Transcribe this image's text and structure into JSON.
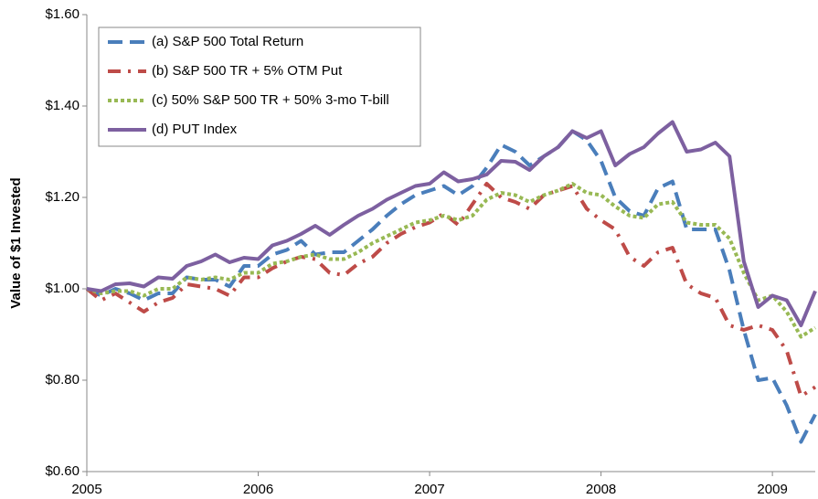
{
  "chart_data": {
    "type": "line",
    "y_label": "Value of $1 Invested",
    "x": [
      2005,
      2005.083,
      2005.167,
      2005.25,
      2005.333,
      2005.417,
      2005.5,
      2005.583,
      2005.667,
      2005.75,
      2005.833,
      2005.917,
      2006,
      2006.083,
      2006.167,
      2006.25,
      2006.333,
      2006.417,
      2006.5,
      2006.583,
      2006.667,
      2006.75,
      2006.833,
      2006.917,
      2007,
      2007.083,
      2007.167,
      2007.25,
      2007.333,
      2007.417,
      2007.5,
      2007.583,
      2007.667,
      2007.75,
      2007.833,
      2007.917,
      2008,
      2008.083,
      2008.167,
      2008.25,
      2008.333,
      2008.417,
      2008.5,
      2008.583,
      2008.667,
      2008.75,
      2008.833,
      2008.917,
      2009,
      2009.083,
      2009.167,
      2009.25
    ],
    "xlim": [
      2005,
      2009.25
    ],
    "xticks": [
      2005,
      2006,
      2007,
      2008,
      2009
    ],
    "ylim": [
      0.6,
      1.6
    ],
    "yticks": [
      {
        "value": 0.6,
        "label": "$0.60"
      },
      {
        "value": 0.8,
        "label": "$0.80"
      },
      {
        "value": 1.0,
        "label": "$1.00"
      },
      {
        "value": 1.2,
        "label": "$1.20"
      },
      {
        "value": 1.4,
        "label": "$1.40"
      },
      {
        "value": 1.6,
        "label": "$1.60"
      }
    ],
    "grid": false,
    "legend": "upper left",
    "series": [
      {
        "name": "(a) S&P 500 Total Return",
        "color": "#4a7ebb",
        "dash": "dashed",
        "values": [
          1.0,
          0.985,
          1.0,
          0.99,
          0.975,
          0.99,
          0.99,
          1.025,
          1.02,
          1.02,
          1.005,
          1.05,
          1.05,
          1.075,
          1.085,
          1.105,
          1.075,
          1.08,
          1.08,
          1.105,
          1.13,
          1.16,
          1.185,
          1.205,
          1.215,
          1.225,
          1.205,
          1.225,
          1.265,
          1.315,
          1.3,
          1.27,
          1.29,
          1.31,
          1.345,
          1.325,
          1.28,
          1.2,
          1.17,
          1.16,
          1.22,
          1.235,
          1.13,
          1.13,
          1.13,
          1.04,
          0.91,
          0.8,
          0.805,
          0.745,
          0.665,
          0.725
        ]
      },
      {
        "name": "(b) S&P 500 TR + 5% OTM Put",
        "color": "#be4b48",
        "dash": "dash-dot",
        "values": [
          1.0,
          0.975,
          0.99,
          0.97,
          0.95,
          0.97,
          0.98,
          1.01,
          1.005,
          1.0,
          0.985,
          1.025,
          1.025,
          1.045,
          1.06,
          1.07,
          1.065,
          1.035,
          1.03,
          1.055,
          1.07,
          1.1,
          1.12,
          1.135,
          1.145,
          1.165,
          1.14,
          1.185,
          1.23,
          1.2,
          1.19,
          1.175,
          1.205,
          1.215,
          1.225,
          1.175,
          1.15,
          1.13,
          1.07,
          1.05,
          1.08,
          1.09,
          1.01,
          0.99,
          0.98,
          0.92,
          0.91,
          0.92,
          0.91,
          0.865,
          0.765,
          0.785
        ]
      },
      {
        "name": "(c) 50% S&P 500 TR + 50% 3-mo T-bill",
        "color": "#98b954",
        "dash": "dotted",
        "values": [
          1.0,
          0.99,
          0.995,
          0.995,
          0.985,
          1.0,
          1.0,
          1.025,
          1.02,
          1.025,
          1.02,
          1.035,
          1.035,
          1.055,
          1.06,
          1.07,
          1.075,
          1.065,
          1.065,
          1.08,
          1.1,
          1.115,
          1.13,
          1.145,
          1.15,
          1.16,
          1.15,
          1.16,
          1.195,
          1.21,
          1.205,
          1.19,
          1.205,
          1.215,
          1.23,
          1.21,
          1.205,
          1.18,
          1.16,
          1.155,
          1.185,
          1.19,
          1.145,
          1.14,
          1.14,
          1.11,
          1.035,
          0.975,
          0.985,
          0.95,
          0.895,
          0.915
        ]
      },
      {
        "name": "(d) PUT Index",
        "color": "#7d60a0",
        "dash": "solid",
        "values": [
          1.0,
          0.995,
          1.01,
          1.012,
          1.005,
          1.025,
          1.022,
          1.05,
          1.06,
          1.075,
          1.058,
          1.068,
          1.065,
          1.095,
          1.105,
          1.12,
          1.138,
          1.118,
          1.14,
          1.16,
          1.175,
          1.195,
          1.21,
          1.225,
          1.23,
          1.255,
          1.235,
          1.24,
          1.25,
          1.28,
          1.278,
          1.26,
          1.29,
          1.31,
          1.345,
          1.33,
          1.345,
          1.27,
          1.295,
          1.31,
          1.34,
          1.365,
          1.3,
          1.305,
          1.32,
          1.29,
          1.06,
          0.96,
          0.985,
          0.975,
          0.92,
          0.995
        ]
      }
    ]
  }
}
